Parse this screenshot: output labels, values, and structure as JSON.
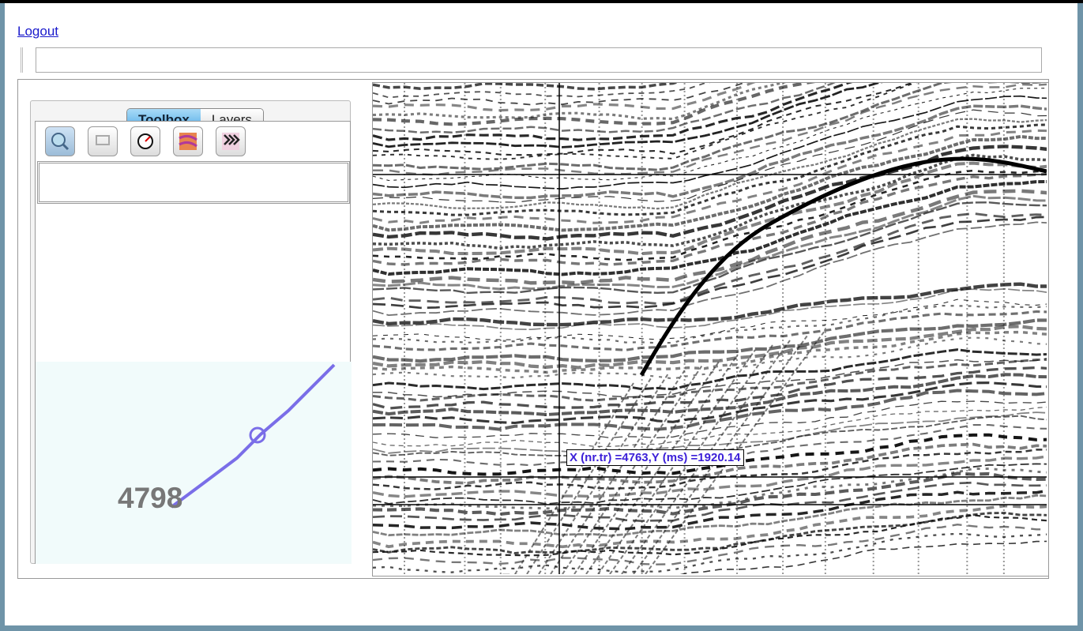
{
  "header": {
    "logout": "Logout"
  },
  "tabs": [
    "Toolbox",
    "Layers"
  ],
  "map": {
    "label": "4798"
  },
  "viewer": {
    "cursor_readout": "X (nr.tr) =4763,Y (ms) =1920.14"
  }
}
